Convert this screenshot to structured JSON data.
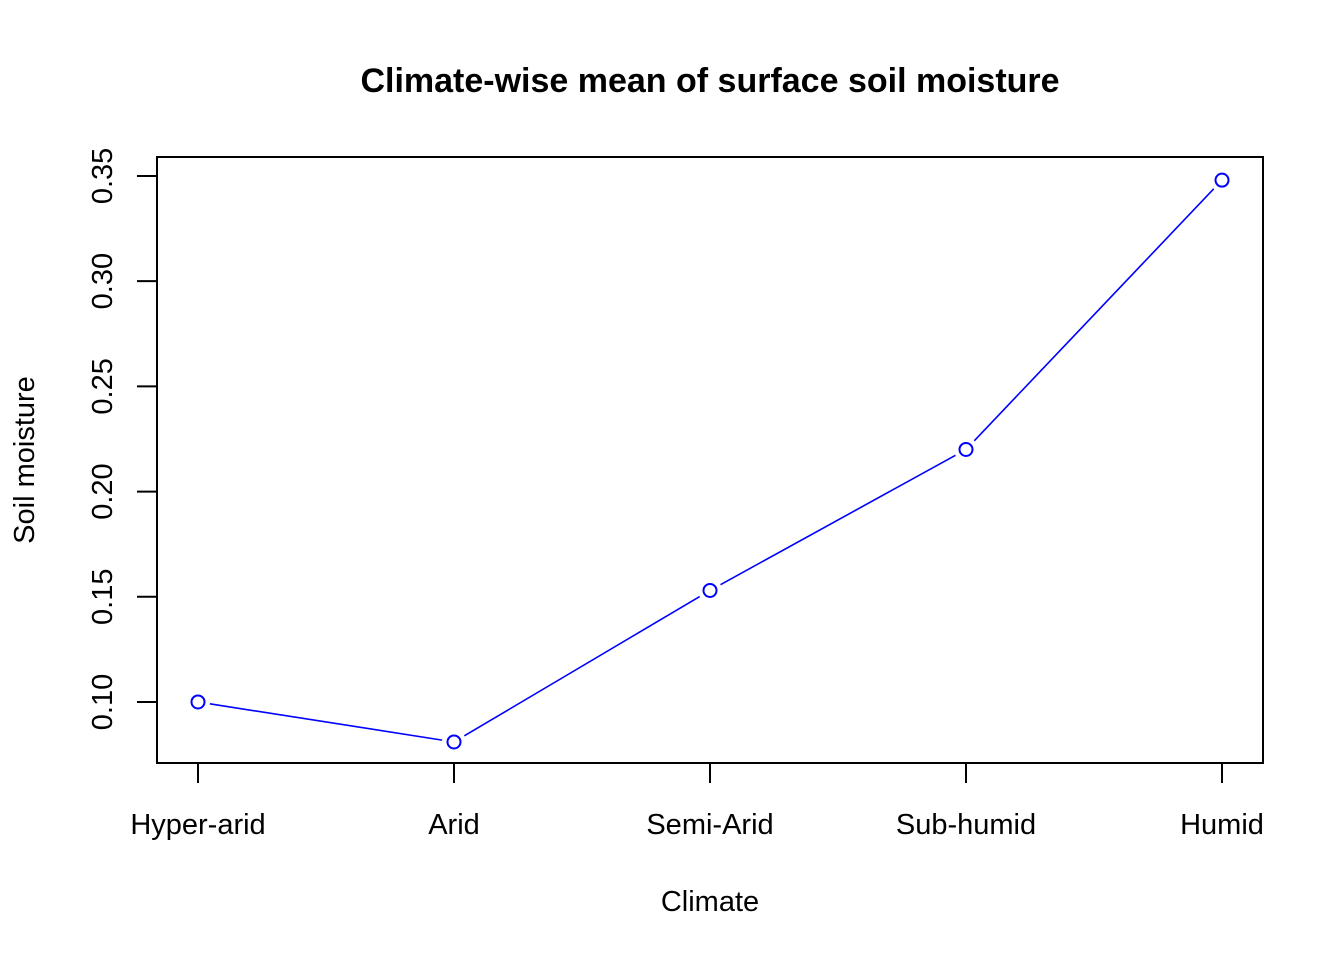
{
  "chart_data": {
    "type": "line",
    "title": "Climate-wise mean of surface soil moisture",
    "xlabel": "Climate",
    "ylabel": "Soil moisture",
    "categories": [
      "Hyper-arid",
      "Arid",
      "Semi-Arid",
      "Sub-humid",
      "Humid"
    ],
    "series": [
      {
        "values": [
          0.1,
          0.081,
          0.153,
          0.22,
          0.348
        ]
      }
    ],
    "yticks": [
      "0.10",
      "0.15",
      "0.20",
      "0.25",
      "0.30",
      "0.35"
    ],
    "ylim": [
      0.071,
      0.359
    ],
    "grid": false,
    "legend": "none",
    "colors": {
      "series": "#0000ff",
      "axis": "#000000"
    }
  }
}
